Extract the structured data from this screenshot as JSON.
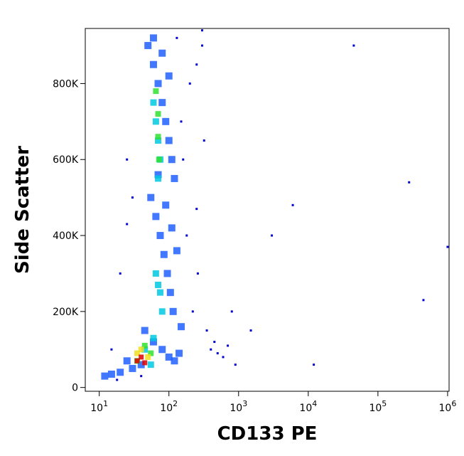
{
  "chart_data": {
    "type": "scatter",
    "x_label": "CD133 PE",
    "y_label": "Side Scatter",
    "xscale": "log",
    "xlim": [
      6.3,
      1050000
    ],
    "ylim": [
      -10000,
      945000
    ],
    "xticks": [
      {
        "value": 10,
        "label": "10",
        "sup": "1"
      },
      {
        "value": 100,
        "label": "10",
        "sup": "2"
      },
      {
        "value": 1000,
        "label": "10",
        "sup": "3"
      },
      {
        "value": 10000,
        "label": "10",
        "sup": "4"
      },
      {
        "value": 100000,
        "label": "10",
        "sup": "5"
      },
      {
        "value": 1000000,
        "label": "10",
        "sup": "6"
      }
    ],
    "yticks": [
      0,
      {
        "value": 200000,
        "label": "200K"
      },
      {
        "value": 400000,
        "label": "400K"
      },
      {
        "value": 600000,
        "label": "600K"
      },
      {
        "value": 800000,
        "label": "800K"
      }
    ],
    "series": [
      {
        "color": "#0000d0",
        "x": [
          15,
          20,
          25,
          150,
          200,
          250,
          300,
          400,
          500,
          700,
          30,
          180,
          220,
          350,
          600,
          900,
          3000,
          6000,
          12000,
          45000,
          280000,
          450000,
          1000000,
          18,
          130,
          160,
          260,
          320,
          450,
          800,
          1500,
          25,
          40,
          250,
          300
        ],
        "y": [
          100000,
          300000,
          600000,
          700000,
          800000,
          850000,
          900000,
          100000,
          90000,
          110000,
          500000,
          400000,
          200000,
          150000,
          80000,
          60000,
          400000,
          480000,
          60000,
          900000,
          540000,
          230000,
          370000,
          20000,
          920000,
          600000,
          300000,
          650000,
          120000,
          200000,
          150000,
          430000,
          30000,
          470000,
          940000
        ]
      },
      {
        "color": "#2060ff",
        "x": [
          50,
          60,
          70,
          80,
          90,
          100,
          110,
          120,
          55,
          65,
          75,
          85,
          95,
          105,
          115,
          45,
          60,
          80,
          100,
          70,
          90,
          110,
          130,
          150,
          60,
          80,
          100,
          120,
          140,
          40,
          30,
          20,
          15,
          12,
          25
        ],
        "y": [
          900000,
          850000,
          800000,
          750000,
          700000,
          650000,
          600000,
          550000,
          500000,
          450000,
          400000,
          350000,
          300000,
          250000,
          200000,
          150000,
          920000,
          880000,
          820000,
          560000,
          480000,
          420000,
          360000,
          160000,
          120000,
          100000,
          80000,
          70000,
          90000,
          60000,
          50000,
          40000,
          35000,
          30000,
          70000
        ]
      },
      {
        "color": "#00c8e0",
        "x": [
          60,
          65,
          70,
          75,
          70,
          65,
          70,
          75,
          80,
          60,
          45,
          55
        ],
        "y": [
          750000,
          700000,
          650000,
          600000,
          550000,
          300000,
          270000,
          250000,
          200000,
          130000,
          100000,
          60000
        ]
      },
      {
        "color": "#30e030",
        "x": [
          65,
          70,
          70,
          72,
          45,
          55,
          35
        ],
        "y": [
          780000,
          720000,
          660000,
          600000,
          110000,
          90000,
          70000
        ]
      },
      {
        "color": "#f0e020",
        "x": [
          40,
          50,
          35
        ],
        "y": [
          100000,
          80000,
          90000
        ]
      },
      {
        "color": "#e00000",
        "x": [
          40,
          45,
          35
        ],
        "y": [
          80000,
          65000,
          70000
        ]
      }
    ]
  }
}
